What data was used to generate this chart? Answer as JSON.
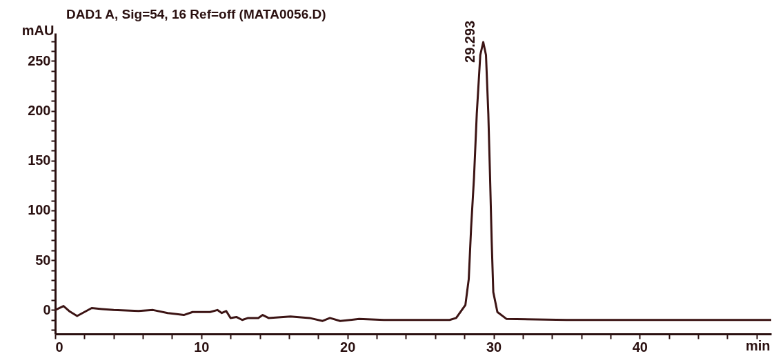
{
  "chart_data": {
    "type": "line",
    "title": "DAD1 A, Sig=54, 16 Ref=off (MATA0056.D)",
    "xlabel": "min",
    "ylabel": "mAU",
    "xlim": [
      0,
      49
    ],
    "ylim": [
      -24,
      278
    ],
    "xticks": [
      0,
      {
        "value": 2,
        "label": null
      },
      {
        "value": 4,
        "label": null
      },
      {
        "value": 6,
        "label": null
      },
      {
        "value": 8,
        "label": null
      },
      10,
      {
        "value": 12,
        "label": null
      },
      {
        "value": 14,
        "label": null
      },
      {
        "value": 16,
        "label": null
      },
      {
        "value": 18,
        "label": null
      },
      20,
      {
        "value": 22,
        "label": null
      },
      {
        "value": 24,
        "label": null
      },
      {
        "value": 26,
        "label": null
      },
      {
        "value": 28,
        "label": null
      },
      30,
      {
        "value": 32,
        "label": null
      },
      {
        "value": 34,
        "label": null
      },
      {
        "value": 36,
        "label": null
      },
      {
        "value": 38,
        "label": null
      },
      40,
      {
        "value": 42,
        "label": null
      },
      {
        "value": 44,
        "label": null
      },
      {
        "value": 46,
        "label": null
      },
      {
        "value": 48,
        "label": null
      }
    ],
    "yticks": [
      {
        "value": -20,
        "label": null
      },
      {
        "value": -10,
        "label": null
      },
      0,
      {
        "value": 10,
        "label": null
      },
      {
        "value": 20,
        "label": null
      },
      {
        "value": 30,
        "label": null
      },
      {
        "value": 40,
        "label": null
      },
      50,
      {
        "value": 60,
        "label": null
      },
      {
        "value": 70,
        "label": null
      },
      {
        "value": 80,
        "label": null
      },
      {
        "value": 90,
        "label": null
      },
      100,
      {
        "value": 110,
        "label": null
      },
      {
        "value": 120,
        "label": null
      },
      {
        "value": 130,
        "label": null
      },
      {
        "value": 140,
        "label": null
      },
      150,
      {
        "value": 160,
        "label": null
      },
      {
        "value": 170,
        "label": null
      },
      {
        "value": 180,
        "label": null
      },
      {
        "value": 190,
        "label": null
      },
      200,
      {
        "value": 210,
        "label": null
      },
      {
        "value": 220,
        "label": null
      },
      {
        "value": 230,
        "label": null
      },
      {
        "value": 240,
        "label": null
      },
      250,
      {
        "value": 260,
        "label": null
      },
      {
        "value": 270,
        "label": null
      }
    ],
    "grid": false,
    "legend": false,
    "marker": "none",
    "line_style": "solid",
    "annotations": [
      {
        "text": "29.293",
        "x": 29.293,
        "y": 269
      }
    ],
    "series": [
      {
        "color": "#3c1414",
        "x": [
          0,
          0.57,
          1.0,
          1.5,
          2.0,
          2.5,
          3.2,
          4.0,
          5.7,
          6.7,
          7.7,
          8.8,
          9.4,
          10.6,
          11.1,
          11.4,
          11.7,
          12.0,
          12.4,
          12.8,
          13.2,
          13.9,
          14.2,
          14.6,
          16.1,
          17.4,
          18.3,
          18.8,
          19.5,
          20.8,
          22.5,
          25.2,
          26.99,
          27.44,
          28.07,
          28.3,
          28.46,
          28.66,
          28.85,
          29.09,
          29.293,
          29.48,
          29.64,
          29.76,
          29.87,
          29.98,
          30.26,
          30.89,
          35,
          49
        ],
        "values": [
          0,
          4,
          -1.5,
          -6,
          -2,
          2,
          1,
          0,
          -1,
          0,
          -3,
          -5,
          -2,
          -2,
          0,
          -3,
          -1,
          -8,
          -7,
          -10,
          -8,
          -8,
          -5,
          -8,
          -6.5,
          -8,
          -11,
          -8,
          -11,
          -9,
          -10,
          -10,
          -10,
          -8,
          5,
          31,
          82,
          133,
          197,
          256,
          269,
          256,
          197,
          133,
          69,
          18,
          -2,
          -9,
          -10,
          -10
        ]
      }
    ]
  }
}
